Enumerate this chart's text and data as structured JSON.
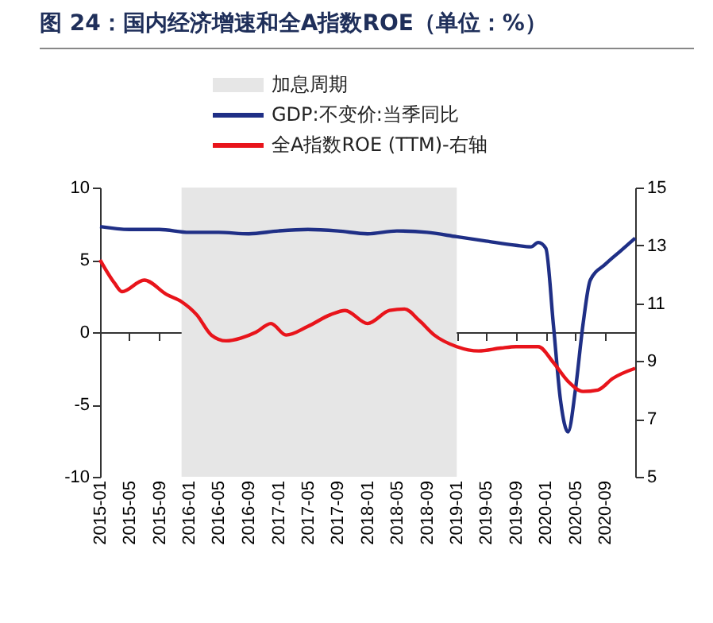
{
  "chart_data": {
    "type": "line",
    "title": "图 24：国内经济增速和全A指数ROE（单位：%）",
    "legend": "top",
    "xlim": [
      "2015-01",
      "2021-01"
    ],
    "xticks": [
      "2015-01",
      "2015-05",
      "2015-09",
      "2016-01",
      "2016-05",
      "2016-09",
      "2017-01",
      "2017-05",
      "2017-09",
      "2018-01",
      "2018-05",
      "2018-09",
      "2019-01",
      "2019-05",
      "2019-09",
      "2020-01",
      "2020-05",
      "2020-09"
    ],
    "ylim": [
      -10,
      10
    ],
    "yticks": [
      -10,
      -5,
      0,
      5,
      10
    ],
    "y2lim": [
      5,
      15
    ],
    "y2ticks": [
      5,
      7,
      9,
      11,
      13,
      15
    ],
    "bands": [
      {
        "axis": "x",
        "from": "2015-12",
        "to": "2019-01",
        "label": "加息周期",
        "color": "#e6e6e6"
      }
    ],
    "series": [
      {
        "name": "GDP:不变价:当季同比",
        "color": "#1f2f86",
        "x": [
          "2015-01",
          "2015-05",
          "2015-09",
          "2016-01",
          "2016-05",
          "2016-09",
          "2017-01",
          "2017-05",
          "2017-09",
          "2018-01",
          "2018-05",
          "2018-09",
          "2019-01",
          "2019-05",
          "2019-09",
          "2019-11",
          "2019-12",
          "2020-01",
          "2020-02",
          "2020-03",
          "2020-04",
          "2020-05",
          "2020-06",
          "2020-07",
          "2020-09",
          "2020-11",
          "2021-01"
        ],
        "values": [
          7.3,
          7.1,
          7.1,
          6.9,
          6.9,
          6.8,
          7.0,
          7.1,
          7.0,
          6.8,
          7.0,
          6.9,
          6.6,
          6.3,
          6.0,
          5.9,
          6.2,
          5.8,
          0.5,
          -4.7,
          -6.9,
          -4.0,
          0.5,
          3.6,
          4.7,
          5.6,
          6.5
        ]
      },
      {
        "name": "全A指数ROE (TTM)-右轴",
        "color": "#e8141b",
        "axis": "y2",
        "x": [
          "2015-01",
          "2015-03",
          "2015-04",
          "2015-07",
          "2015-10",
          "2015-12",
          "2016-02",
          "2016-04",
          "2016-06",
          "2016-08",
          "2016-10",
          "2016-12",
          "2017-02",
          "2017-05",
          "2017-08",
          "2017-10",
          "2018-01",
          "2018-04",
          "2018-06",
          "2018-08",
          "2018-10",
          "2019-01",
          "2019-04",
          "2019-07",
          "2019-09",
          "2019-12",
          "2020-02",
          "2020-04",
          "2020-06",
          "2020-08",
          "2020-10",
          "2021-01"
        ],
        "values": [
          12.5,
          11.7,
          11.4,
          11.8,
          11.3,
          11.05,
          10.6,
          9.9,
          9.7,
          9.8,
          10.0,
          10.3,
          9.9,
          10.2,
          10.6,
          10.75,
          10.3,
          10.75,
          10.8,
          10.4,
          9.9,
          9.5,
          9.35,
          9.45,
          9.5,
          9.5,
          8.95,
          8.3,
          7.95,
          8.0,
          8.4,
          8.75
        ]
      }
    ]
  }
}
